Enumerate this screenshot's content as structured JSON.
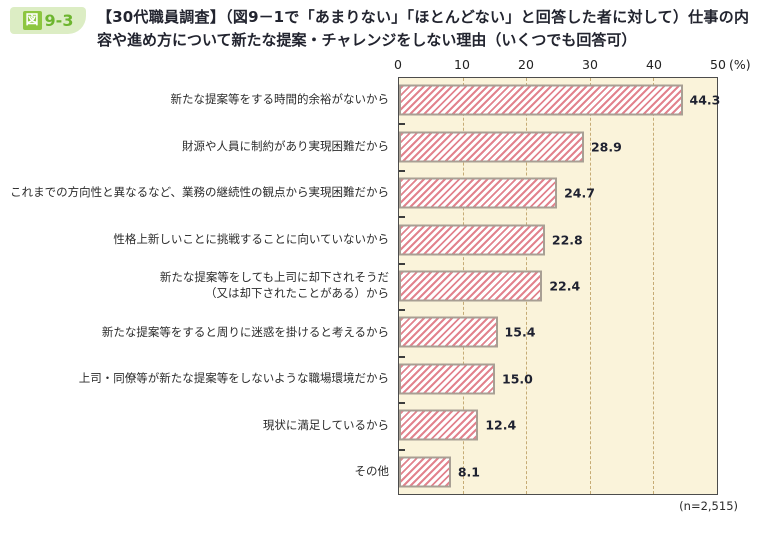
{
  "figure": {
    "badge": {
      "icon_label": "図",
      "number": "9-3"
    },
    "title": "【30代職員調査】（図9－1で「あまりない」「ほとんどない」と回答した者に対して）仕事の内容や進め方について新たな提案・チャレンジをしない理由（いくつでも回答可）"
  },
  "chart_data": {
    "type": "bar",
    "orientation": "horizontal",
    "title": "仕事の内容や進め方について新たな提案・チャレンジをしない理由（30代職員調査）",
    "categories": [
      "新たな提案等をする時間的余裕がないから",
      "財源や人員に制約があり実現困難だから",
      "これまでの方向性と異なるなど、業務の継続性の観点から実現困難だから",
      "性格上新しいことに挑戦することに向いていないから",
      "新たな提案等をしても上司に却下されそうだ\n（又は却下されたことがある）から",
      "新たな提案等をすると周りに迷惑を掛けると考えるから",
      "上司・同僚等が新たな提案等をしないような職場環境だから",
      "現状に満足しているから",
      "その他"
    ],
    "values": [
      44.3,
      28.9,
      24.7,
      22.8,
      22.4,
      15.4,
      15.0,
      12.4,
      8.1
    ],
    "values_display": [
      "44.3",
      "28.9",
      "24.7",
      "22.8",
      "22.4",
      "15.4",
      "15.0",
      "12.4",
      "8.1"
    ],
    "xlim": [
      0,
      50
    ],
    "x_ticks": [
      0,
      10,
      20,
      30,
      40,
      50
    ],
    "x_unit": "(%)",
    "n_label": "(n=2,515)",
    "grid": "dashed-vertical",
    "legend": "none",
    "colors": {
      "plot_background": "#faf3da",
      "bar_stripe": "#e2838e",
      "bar_border": "#a89f94",
      "gridline": "#c6ab74",
      "value_text": "#1e2130",
      "badge_green": "#8dc63f",
      "badge_background": "#dcedc4"
    }
  }
}
